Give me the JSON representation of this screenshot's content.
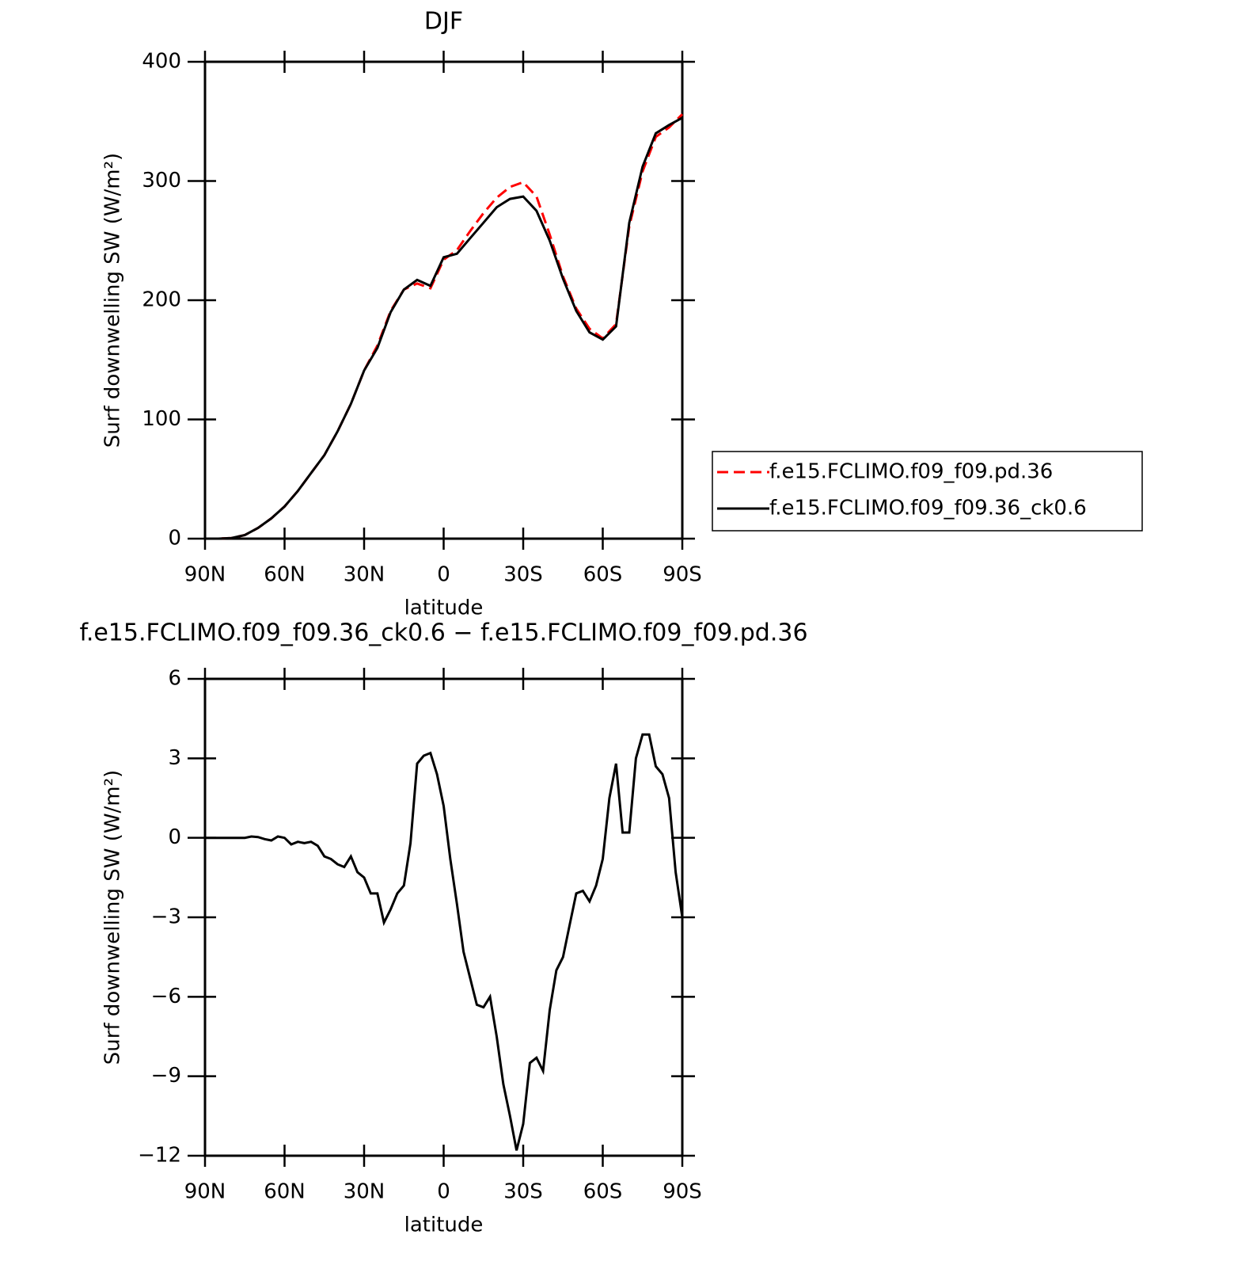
{
  "chart_data": [
    {
      "type": "line",
      "title": "DJF",
      "x_label": "latitude",
      "y_label": "Surf downwelling SW (W/m²)",
      "x": [
        90,
        85,
        80,
        75,
        70,
        65,
        60,
        55,
        50,
        45,
        40,
        35,
        30,
        25,
        20,
        15,
        10,
        5,
        0,
        -5,
        -10,
        -15,
        -20,
        -25,
        -30,
        -35,
        -40,
        -45,
        -50,
        -55,
        -60,
        -65,
        -70,
        -75,
        -80,
        -85,
        -90
      ],
      "series": [
        {
          "name": "f.e15.FCLIMO.f09_f09.pd.36",
          "color": "#ff0000",
          "dash": "dashed",
          "values": [
            0,
            0,
            0.5,
            3,
            9,
            17,
            27,
            40,
            55,
            70,
            90,
            113,
            141,
            162,
            191,
            209,
            214,
            210,
            234,
            242,
            258,
            273,
            286,
            295,
            299,
            287,
            255,
            220,
            193,
            176,
            168,
            180,
            262,
            308,
            337,
            345,
            356
          ]
        },
        {
          "name": "f.e15.FCLIMO.f09_f09.36_ck0.6",
          "color": "#000000",
          "dash": "solid",
          "values": [
            0,
            0,
            0.5,
            3,
            9,
            17,
            27,
            40,
            55,
            70,
            90,
            113,
            141,
            160,
            190,
            209,
            217,
            212,
            236,
            239,
            252,
            265,
            278,
            285,
            287,
            275,
            250,
            218,
            191,
            173,
            167,
            178,
            265,
            312,
            340,
            347,
            353
          ]
        }
      ],
      "xlim": [
        90,
        -90
      ],
      "xticks": [
        {
          "value": 90,
          "label": "90N"
        },
        {
          "value": 60,
          "label": "60N"
        },
        {
          "value": 30,
          "label": "30N"
        },
        0,
        {
          "value": -30,
          "label": "30S"
        },
        {
          "value": -60,
          "label": "60S"
        },
        {
          "value": -90,
          "label": "90S"
        }
      ],
      "ylim": [
        0,
        400
      ],
      "yticks": [
        0,
        100,
        200,
        300,
        400
      ],
      "legend": "right"
    },
    {
      "type": "line",
      "title": "f.e15.FCLIMO.f09_f09.36_ck0.6 − f.e15.FCLIMO.f09_f09.pd.36",
      "x_label": "latitude",
      "y_label": "Surf downwelling SW (W/m²)",
      "x": [
        90,
        87.5,
        85,
        82.5,
        80,
        77.5,
        75,
        72.5,
        70,
        67.5,
        65,
        62.5,
        60,
        57.5,
        55,
        52.5,
        50,
        47.5,
        45,
        42.5,
        40,
        37.5,
        35,
        32.5,
        30,
        27.5,
        25,
        22.5,
        20,
        17.5,
        15,
        12.5,
        10,
        7.5,
        5,
        2.5,
        0,
        -2.5,
        -5,
        -7.5,
        -10,
        -12.5,
        -15,
        -17.5,
        -20,
        -22.5,
        -25,
        -27.5,
        -30,
        -32.5,
        -35,
        -37.5,
        -40,
        -42.5,
        -45,
        -47.5,
        -50,
        -52.5,
        -55,
        -57.5,
        -60,
        -62.5,
        -65,
        -67.5,
        -70,
        -72.5,
        -75,
        -77.5,
        -80,
        -82.5,
        -85,
        -87.5,
        -90
      ],
      "color": "#000000",
      "values": [
        0,
        0,
        0,
        0,
        0,
        0,
        0,
        0.05,
        0.03,
        -0.05,
        -0.1,
        0.05,
        0,
        -0.25,
        -0.15,
        -0.2,
        -0.15,
        -0.3,
        -0.7,
        -0.8,
        -1.0,
        -1.1,
        -0.7,
        -1.3,
        -1.5,
        -2.1,
        -2.1,
        -3.2,
        -2.7,
        -2.1,
        -1.8,
        -0.2,
        2.8,
        3.1,
        3.2,
        2.4,
        1.2,
        -0.8,
        -2.5,
        -4.3,
        -5.3,
        -6.3,
        -6.4,
        -6.0,
        -7.5,
        -9.3,
        -10.5,
        -11.8,
        -10.8,
        -8.5,
        -8.3,
        -8.8,
        -6.5,
        -5.0,
        -4.5,
        -3.3,
        -2.1,
        -2.0,
        -2.4,
        -1.8,
        -0.8,
        1.5,
        2.8,
        0.2,
        0.2,
        3.0,
        3.9,
        3.9,
        2.7,
        2.4,
        1.5,
        -1.3,
        -3.0
      ],
      "xlim": [
        90,
        -90
      ],
      "xticks": [
        {
          "value": 90,
          "label": "90N"
        },
        {
          "value": 60,
          "label": "60N"
        },
        {
          "value": 30,
          "label": "30N"
        },
        0,
        {
          "value": -30,
          "label": "30S"
        },
        {
          "value": -60,
          "label": "60S"
        },
        {
          "value": -90,
          "label": "90S"
        }
      ],
      "ylim": [
        -12,
        6
      ],
      "yticks": [
        {
          "value": -12,
          "label": "−12"
        },
        {
          "value": -9,
          "label": "−9"
        },
        {
          "value": -6,
          "label": "−6"
        },
        {
          "value": -3,
          "label": "−3"
        },
        0,
        3,
        6
      ]
    }
  ]
}
